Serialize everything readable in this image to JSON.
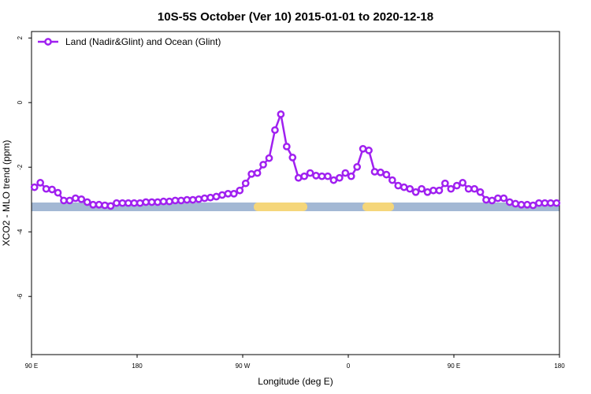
{
  "chart_data": {
    "type": "line",
    "title": "10S-5S October (Ver 10)   2015-01-01 to 2020-12-18",
    "x_label": "Longitude (deg E)",
    "y_label": "XCO2 - MLO trend (ppm)",
    "xlim": [
      90,
      540
    ],
    "ylim": [
      -7.8,
      2.2
    ],
    "xticks": [
      {
        "value": 90,
        "label": "90 E"
      },
      180,
      {
        "value": 270,
        "label": "90 W"
      },
      {
        "value": 360,
        "label": "0"
      },
      {
        "value": 450,
        "label": "90 E"
      },
      {
        "value": 540,
        "label": "180"
      }
    ],
    "yticks": [
      2,
      0,
      -2,
      -4,
      -6
    ],
    "legend": "top-left",
    "x": [
      92.5,
      97.5,
      102.5,
      107.5,
      112.5,
      117.5,
      122.5,
      127.5,
      132.5,
      137.5,
      142.5,
      147.5,
      152.5,
      157.5,
      162.5,
      167.5,
      172.5,
      177.5,
      182.5,
      187.5,
      192.5,
      197.5,
      202.5,
      207.5,
      212.5,
      217.5,
      222.5,
      227.5,
      232.5,
      237.5,
      242.5,
      247.5,
      252.5,
      257.5,
      262.5,
      267.5,
      272.5,
      277.5,
      282.5,
      287.5,
      292.5,
      297.5,
      302.5,
      307.5,
      312.5,
      317.5,
      322.5,
      327.5,
      332.5,
      337.5,
      342.5,
      347.5,
      352.5,
      357.5,
      362.5,
      367.5,
      372.5,
      377.5,
      382.5,
      387.5,
      392.5,
      397.5,
      402.5,
      407.5,
      412.5,
      417.5,
      422.5,
      427.5,
      432.5,
      437.5,
      442.5,
      447.5,
      452.5,
      457.5,
      462.5,
      467.5,
      472.5,
      477.5,
      482.5,
      487.5,
      492.5,
      497.5,
      502.5,
      507.5,
      512.5,
      517.5,
      522.5,
      527.5,
      532.5,
      537.5
    ],
    "series": [
      {
        "name": "Land (Nadir&Glint) and Ocean (Glint)",
        "color": "#a020f0",
        "values": [
          -2.62,
          -2.48,
          -2.67,
          -2.69,
          -2.79,
          -3.03,
          -3.03,
          -2.96,
          -2.99,
          -3.08,
          -3.16,
          -3.16,
          -3.18,
          -3.2,
          -3.11,
          -3.11,
          -3.11,
          -3.11,
          -3.11,
          -3.08,
          -3.08,
          -3.08,
          -3.06,
          -3.06,
          -3.03,
          -3.03,
          -3.01,
          -3.01,
          -2.99,
          -2.96,
          -2.94,
          -2.91,
          -2.86,
          -2.82,
          -2.82,
          -2.72,
          -2.5,
          -2.21,
          -2.18,
          -1.92,
          -1.72,
          -0.85,
          -0.36,
          -1.36,
          -1.7,
          -2.33,
          -2.28,
          -2.18,
          -2.26,
          -2.28,
          -2.28,
          -2.4,
          -2.33,
          -2.18,
          -2.28,
          -1.99,
          -1.43,
          -1.48,
          -2.14,
          -2.16,
          -2.23,
          -2.4,
          -2.57,
          -2.62,
          -2.67,
          -2.77,
          -2.67,
          -2.77,
          -2.72,
          -2.72,
          -2.5,
          -2.67,
          -2.57,
          -2.48,
          -2.67,
          -2.67,
          -2.77,
          -3.01,
          -3.03,
          -2.96,
          -2.96,
          -3.08,
          -3.13,
          -3.16,
          -3.16,
          -3.18,
          -3.11,
          -3.11,
          -3.11,
          -3.11
        ]
      }
    ]
  }
}
